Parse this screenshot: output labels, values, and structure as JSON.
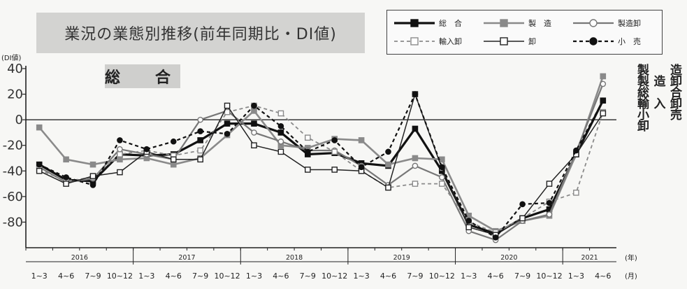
{
  "title": "業況の業態別推移(前年同期比・DI値)",
  "panel_label": "総　合",
  "chart_data": {
    "type": "line",
    "ylabel": "(DI値)",
    "ylim": [
      -100,
      40
    ],
    "yticks": [
      40,
      20,
      0,
      -20,
      -40,
      -60,
      -80
    ],
    "x_unit_year": "(年)",
    "x_unit_month": "(月)",
    "categories": [
      "1~3",
      "4~6",
      "7~9",
      "10~12",
      "1~3",
      "4~6",
      "7~9",
      "10~12",
      "1~3",
      "4~6",
      "7~9",
      "10~12",
      "1~3",
      "4~6",
      "7~9",
      "10~12",
      "1~3",
      "4~6",
      "7~9",
      "10~12",
      "1~3",
      "4~6"
    ],
    "years": [
      {
        "label": "2016",
        "start": 0,
        "end": 3
      },
      {
        "label": "2017",
        "start": 4,
        "end": 7
      },
      {
        "label": "2018",
        "start": 8,
        "end": 11
      },
      {
        "label": "2019",
        "start": 12,
        "end": 15
      },
      {
        "label": "2020",
        "start": 16,
        "end": 19
      },
      {
        "label": "2021",
        "start": 20,
        "end": 21
      }
    ],
    "series": [
      {
        "name": "総合",
        "color": "#111111",
        "width": 3.2,
        "dash": "",
        "marker": "square",
        "fill": "#111111",
        "values": [
          -35,
          -47,
          -48,
          -27,
          -28,
          -27,
          -16,
          -3,
          -3,
          -10,
          -27,
          -26,
          -34,
          -36,
          -7,
          -40,
          -82,
          -89,
          -77,
          -70,
          -27,
          15
        ]
      },
      {
        "name": "製造",
        "color": "#8a8a8a",
        "width": 2.6,
        "dash": "",
        "marker": "square",
        "fill": "#8a8a8a",
        "values": [
          -6,
          -31,
          -35,
          -31,
          -30,
          -35,
          -30,
          -12,
          7,
          -20,
          -22,
          -15,
          -16,
          -35,
          -30,
          -31,
          -75,
          -87,
          -79,
          -75,
          -27,
          34
        ]
      },
      {
        "name": "製造卸",
        "color": "#777777",
        "width": 2.2,
        "dash": "",
        "marker": "circle",
        "fill": "#ffffff",
        "values": [
          -37,
          -49,
          -46,
          -23,
          -27,
          -31,
          0,
          7,
          -10,
          -17,
          -24,
          -24,
          -36,
          -51,
          -36,
          -45,
          -87,
          -94,
          -79,
          -74,
          -25,
          28
        ]
      },
      {
        "name": "輸入卸",
        "color": "#8a8a8a",
        "width": 1.8,
        "dash": "5,4",
        "marker": "square",
        "fill": "#ffffff",
        "values": [
          -39,
          -48,
          -45,
          -27,
          -24,
          -28,
          -24,
          6,
          11,
          5,
          -14,
          -25,
          -40,
          -53,
          -50,
          -50,
          -80,
          -88,
          -77,
          -64,
          -57,
          6
        ]
      },
      {
        "name": "卸",
        "color": "#222222",
        "width": 1.5,
        "dash": "",
        "marker": "square",
        "fill": "#ffffff",
        "values": [
          -40,
          -50,
          -44,
          -41,
          -25,
          -31,
          -31,
          11,
          -20,
          -25,
          -39,
          -39,
          -40,
          -53,
          20,
          -38,
          -84,
          -90,
          -77,
          -50,
          -27,
          5
        ]
      },
      {
        "name": "小売",
        "color": "#111111",
        "width": 2.2,
        "dash": "5,4",
        "marker": "circle",
        "fill": "#111111",
        "values": [
          -35,
          -45,
          -51,
          -16,
          -23,
          -17,
          -9,
          -11,
          11,
          -5,
          -25,
          -16,
          -37,
          -25,
          20,
          -37,
          -79,
          -92,
          -66,
          -65,
          -24,
          15
        ]
      }
    ]
  },
  "legend": {
    "items": [
      {
        "name": "総合",
        "display": "総　合",
        "color": "#111111",
        "width": 3.2,
        "dash": "",
        "marker": "square",
        "fill": "#111111"
      },
      {
        "name": "製造",
        "display": "製　造",
        "color": "#8a8a8a",
        "width": 2.6,
        "dash": "",
        "marker": "square",
        "fill": "#8a8a8a"
      },
      {
        "name": "製造卸",
        "display": "製造卸",
        "color": "#777777",
        "width": 2.2,
        "dash": "",
        "marker": "circle",
        "fill": "#ffffff"
      },
      {
        "name": "輸入卸",
        "display": "輸入卸",
        "color": "#8a8a8a",
        "width": 1.8,
        "dash": "5,4",
        "marker": "square",
        "fill": "#ffffff"
      },
      {
        "name": "卸",
        "display": "卸",
        "color": "#222222",
        "width": 1.5,
        "dash": "",
        "marker": "square",
        "fill": "#ffffff"
      },
      {
        "name": "小売",
        "display": "小　売",
        "color": "#111111",
        "width": 2.2,
        "dash": "5,4",
        "marker": "circle",
        "fill": "#111111"
      }
    ]
  },
  "right_labels": [
    [
      "製",
      "造"
    ],
    [
      "製",
      "造",
      "卸"
    ],
    [
      "総",
      "合"
    ],
    [
      "輸",
      "入",
      "卸"
    ],
    [
      "小",
      "売"
    ],
    [
      "卸"
    ]
  ]
}
